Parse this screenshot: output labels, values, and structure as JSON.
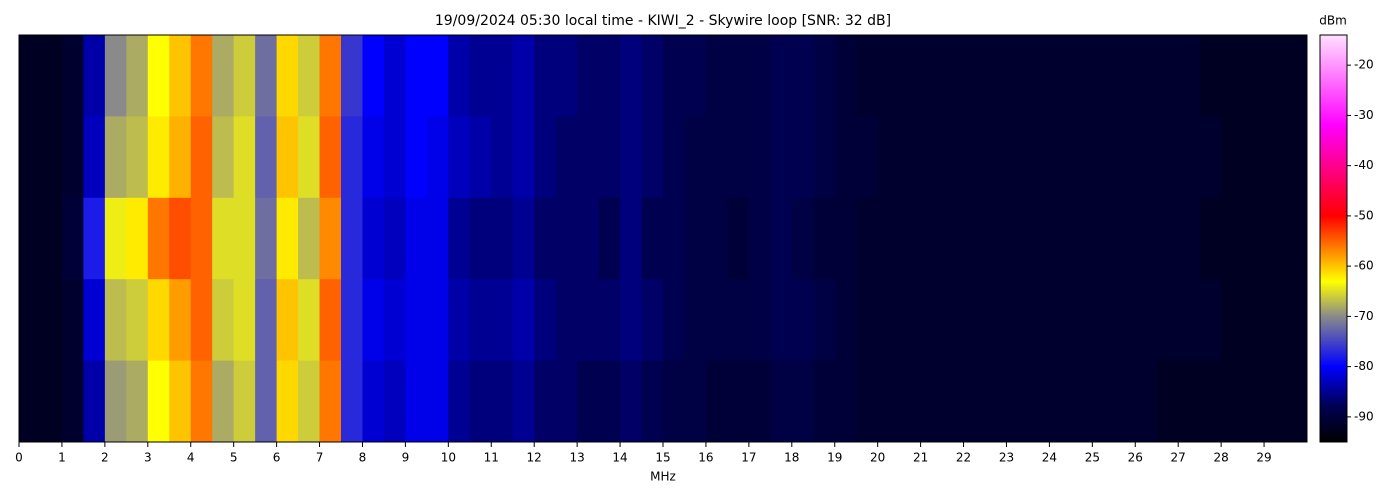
{
  "chart_data": {
    "type": "heatmap",
    "title": "19/09/2024 05:30 local time - KIWI_2 - Skywire loop [SNR: 32 dB]",
    "xlabel": "MHz",
    "colorbar_label": "dBm",
    "xlim": [
      0,
      30
    ],
    "xticks": [
      0,
      1,
      2,
      3,
      4,
      5,
      6,
      7,
      8,
      9,
      10,
      11,
      12,
      13,
      14,
      15,
      16,
      17,
      18,
      19,
      20,
      21,
      22,
      23,
      24,
      25,
      26,
      27,
      28,
      29
    ],
    "clim": [
      -95,
      -14
    ],
    "cticks": [
      -90,
      -80,
      -70,
      -60,
      -50,
      -40,
      -30,
      -20
    ],
    "colorscale": [
      {
        "value": -95,
        "color": "#000000"
      },
      {
        "value": -88,
        "color": "#000050"
      },
      {
        "value": -80,
        "color": "#0000ff"
      },
      {
        "value": -70,
        "color": "#8a8a8a"
      },
      {
        "value": -63,
        "color": "#ffff00"
      },
      {
        "value": -50,
        "color": "#ff0000"
      },
      {
        "value": -32,
        "color": "#ff00ff"
      },
      {
        "value": -14,
        "color": "#ffe0ff"
      }
    ],
    "xbins": [
      0,
      0.5,
      1,
      1.5,
      2,
      2.5,
      3,
      3.5,
      4,
      4.5,
      5,
      5.5,
      6,
      6.5,
      7,
      7.5,
      8,
      8.5,
      9,
      9.5,
      10,
      10.5,
      11,
      11.5,
      12,
      12.5,
      13,
      13.5,
      14,
      14.5,
      15,
      15.5,
      16,
      16.5,
      17,
      17.5,
      18,
      18.5,
      19,
      19.5,
      20,
      20.5,
      21,
      21.5,
      22,
      22.5,
      23,
      23.5,
      24,
      24.5,
      25,
      25.5,
      26,
      26.5,
      27,
      27.5,
      28,
      28.5,
      29,
      29.5,
      30
    ],
    "z": [
      [
        -92,
        -92,
        -91,
        -84,
        -70,
        -68,
        -63,
        -60,
        -56,
        -68,
        -66,
        -72,
        -61,
        -66,
        -56,
        -76,
        -80,
        -82,
        -80,
        -80,
        -84,
        -85,
        -85,
        -84,
        -86,
        -86,
        -87,
        -87,
        -86,
        -87,
        -88,
        -88,
        -89,
        -89,
        -89,
        -88,
        -88,
        -89,
        -90,
        -91,
        -91,
        -91,
        -91,
        -91,
        -91,
        -91,
        -91,
        -91,
        -91,
        -91,
        -91,
        -91,
        -91,
        -91,
        -91,
        -92,
        -92,
        -92,
        -92,
        -92
      ],
      [
        -92,
        -92,
        -91,
        -83,
        -68,
        -67,
        -62,
        -59,
        -55,
        -67,
        -65,
        -73,
        -60,
        -65,
        -55,
        -77,
        -81,
        -82,
        -80,
        -81,
        -83,
        -84,
        -85,
        -84,
        -86,
        -87,
        -87,
        -87,
        -86,
        -87,
        -88,
        -89,
        -89,
        -89,
        -89,
        -88,
        -88,
        -89,
        -90,
        -90,
        -91,
        -91,
        -91,
        -91,
        -91,
        -91,
        -91,
        -91,
        -91,
        -91,
        -91,
        -91,
        -91,
        -91,
        -91,
        -91,
        -92,
        -92,
        -92,
        -92
      ],
      [
        -92,
        -92,
        -90,
        -78,
        -64,
        -62,
        -56,
        -54,
        -55,
        -65,
        -65,
        -72,
        -62,
        -67,
        -57,
        -77,
        -82,
        -83,
        -81,
        -81,
        -85,
        -86,
        -86,
        -85,
        -87,
        -87,
        -87,
        -88,
        -86,
        -88,
        -88,
        -89,
        -89,
        -90,
        -89,
        -88,
        -89,
        -90,
        -90,
        -91,
        -91,
        -91,
        -91,
        -91,
        -91,
        -91,
        -91,
        -91,
        -91,
        -91,
        -91,
        -91,
        -91,
        -91,
        -91,
        -92,
        -92,
        -92,
        -92,
        -92
      ],
      [
        -92,
        -92,
        -91,
        -82,
        -67,
        -66,
        -61,
        -58,
        -55,
        -66,
        -65,
        -73,
        -60,
        -65,
        -55,
        -77,
        -81,
        -82,
        -81,
        -81,
        -84,
        -85,
        -85,
        -84,
        -86,
        -87,
        -87,
        -87,
        -86,
        -87,
        -88,
        -89,
        -89,
        -89,
        -89,
        -88,
        -88,
        -89,
        -90,
        -91,
        -91,
        -91,
        -91,
        -91,
        -91,
        -91,
        -91,
        -91,
        -91,
        -91,
        -91,
        -91,
        -91,
        -91,
        -91,
        -91,
        -92,
        -92,
        -92,
        -92
      ],
      [
        -92,
        -92,
        -91,
        -84,
        -69,
        -68,
        -63,
        -60,
        -56,
        -68,
        -66,
        -73,
        -61,
        -66,
        -56,
        -77,
        -82,
        -83,
        -81,
        -81,
        -85,
        -86,
        -86,
        -85,
        -87,
        -87,
        -88,
        -88,
        -87,
        -88,
        -89,
        -89,
        -90,
        -90,
        -90,
        -89,
        -89,
        -90,
        -90,
        -91,
        -91,
        -91,
        -91,
        -91,
        -91,
        -91,
        -91,
        -91,
        -91,
        -91,
        -91,
        -91,
        -91,
        -92,
        -92,
        -92,
        -92,
        -92,
        -92,
        -92
      ]
    ]
  }
}
